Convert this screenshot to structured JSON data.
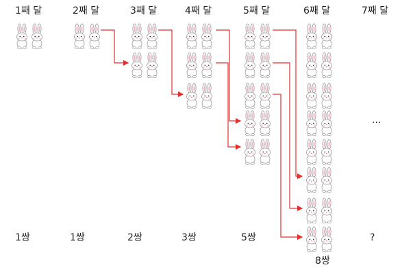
{
  "months": [
    "1째 달",
    "2째 달",
    "3째 달",
    "4째 달",
    "5째 달",
    "6째 달",
    "7째 달"
  ],
  "pair_counts": [
    "1쌍",
    "1쌍",
    "2쌍",
    "3쌍",
    "5쌍",
    "8쌍",
    "?"
  ],
  "ellipsis": "...",
  "colors": {
    "arrow": "#e03030",
    "rabbit_outline": "#9a9a9a",
    "ear_pink": "#f4b8c4"
  },
  "icons": {
    "rabbit": "rabbit-icon"
  }
}
